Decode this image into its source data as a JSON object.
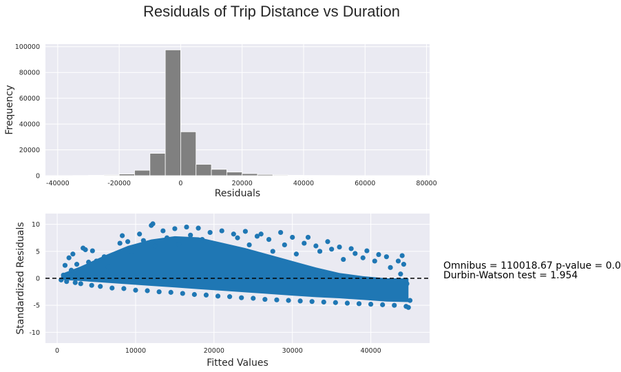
{
  "figure": {
    "title": "Residuals of Trip Distance vs Duration",
    "stats_line1": "Omnibus = 110018.67 p-value = 0.0",
    "stats_line2": "Durbin-Watson test = 1.954"
  },
  "chart_data": [
    {
      "type": "bar",
      "subtype": "histogram",
      "xlabel": "Residuals",
      "ylabel": "Frequency",
      "xlim": [
        -44000,
        81000
      ],
      "ylim": [
        0,
        102000
      ],
      "xticks": [
        -40000,
        -20000,
        0,
        20000,
        40000,
        60000,
        80000
      ],
      "xtick_labels": [
        "-40000",
        "-20000",
        "0",
        "20000",
        "40000",
        "60000",
        "80000"
      ],
      "yticks": [
        0,
        20000,
        40000,
        60000,
        80000,
        100000
      ],
      "ytick_labels": [
        "0",
        "20000",
        "40000",
        "60000",
        "80000",
        "100000"
      ],
      "grid": true,
      "bar_color": "#808080",
      "bins": [
        {
          "x0": -40000,
          "x1": -35000,
          "value": 50
        },
        {
          "x0": -35000,
          "x1": -30000,
          "value": 150
        },
        {
          "x0": -30000,
          "x1": -25000,
          "value": 300
        },
        {
          "x0": -25000,
          "x1": -20000,
          "value": 500
        },
        {
          "x0": -20000,
          "x1": -15000,
          "value": 1300
        },
        {
          "x0": -15000,
          "x1": -10000,
          "value": 4200
        },
        {
          "x0": -10000,
          "x1": -5000,
          "value": 17300
        },
        {
          "x0": -5000,
          "x1": 0,
          "value": 97500
        },
        {
          "x0": 0,
          "x1": 5000,
          "value": 34000
        },
        {
          "x0": 5000,
          "x1": 10000,
          "value": 8800
        },
        {
          "x0": 10000,
          "x1": 15000,
          "value": 4900
        },
        {
          "x0": 15000,
          "x1": 20000,
          "value": 2800
        },
        {
          "x0": 20000,
          "x1": 25000,
          "value": 1600
        },
        {
          "x0": 25000,
          "x1": 30000,
          "value": 900
        },
        {
          "x0": 30000,
          "x1": 35000,
          "value": 500
        },
        {
          "x0": 35000,
          "x1": 40000,
          "value": 300
        },
        {
          "x0": 40000,
          "x1": 45000,
          "value": 200
        },
        {
          "x0": 45000,
          "x1": 50000,
          "value": 150
        },
        {
          "x0": 50000,
          "x1": 55000,
          "value": 100
        },
        {
          "x0": 55000,
          "x1": 60000,
          "value": 60
        },
        {
          "x0": 60000,
          "x1": 65000,
          "value": 40
        },
        {
          "x0": 65000,
          "x1": 70000,
          "value": 30
        },
        {
          "x0": 70000,
          "x1": 75000,
          "value": 20
        }
      ]
    },
    {
      "type": "scatter",
      "xlabel": "Fitted Values",
      "ylabel": "Standardized Residuals",
      "xlim": [
        -1500,
        47500
      ],
      "ylim": [
        -12,
        12
      ],
      "xticks": [
        0,
        10000,
        20000,
        30000,
        40000
      ],
      "xtick_labels": [
        "0",
        "10000",
        "20000",
        "30000",
        "40000"
      ],
      "yticks": [
        -10,
        -5,
        0,
        5,
        10
      ],
      "ytick_labels": [
        "-10",
        "-5",
        "0",
        "5",
        "10"
      ],
      "grid": true,
      "point_color": "#1f77b4",
      "reference_line": {
        "y": 0,
        "style": "dashed",
        "color": "#000000"
      },
      "points": [
        [
          500,
          -0.3
        ],
        [
          800,
          0.6
        ],
        [
          1000,
          2.4
        ],
        [
          1200,
          -0.6
        ],
        [
          1500,
          3.8
        ],
        [
          1800,
          1.5
        ],
        [
          2000,
          4.5
        ],
        [
          2300,
          -0.8
        ],
        [
          2500,
          2.6
        ],
        [
          3000,
          -1.0
        ],
        [
          3300,
          5.6
        ],
        [
          3600,
          5.3
        ],
        [
          4000,
          3.0
        ],
        [
          4400,
          -1.3
        ],
        [
          4500,
          5.1
        ],
        [
          5000,
          3.2
        ],
        [
          5500,
          -1.5
        ],
        [
          6000,
          4.0
        ],
        [
          6500,
          2.1
        ],
        [
          7000,
          -1.8
        ],
        [
          7500,
          4.4
        ],
        [
          8000,
          6.5
        ],
        [
          8300,
          7.9
        ],
        [
          8500,
          -1.9
        ],
        [
          9000,
          6.8
        ],
        [
          9500,
          5.0
        ],
        [
          10000,
          -2.2
        ],
        [
          10500,
          8.2
        ],
        [
          11000,
          7.0
        ],
        [
          11500,
          -2.3
        ],
        [
          12000,
          9.8
        ],
        [
          12200,
          10.1
        ],
        [
          12500,
          6.0
        ],
        [
          13000,
          -2.5
        ],
        [
          13500,
          8.8
        ],
        [
          14000,
          7.5
        ],
        [
          14500,
          -2.6
        ],
        [
          15000,
          9.2
        ],
        [
          15500,
          6.3
        ],
        [
          16000,
          -2.8
        ],
        [
          16500,
          9.5
        ],
        [
          17000,
          8.0
        ],
        [
          17500,
          -3.0
        ],
        [
          18000,
          9.3
        ],
        [
          18500,
          7.2
        ],
        [
          19000,
          -3.1
        ],
        [
          19500,
          8.5
        ],
        [
          20000,
          6.4
        ],
        [
          20500,
          -3.3
        ],
        [
          21000,
          8.8
        ],
        [
          21500,
          5.8
        ],
        [
          22000,
          -3.4
        ],
        [
          22500,
          8.2
        ],
        [
          23000,
          7.5
        ],
        [
          23500,
          -3.6
        ],
        [
          24000,
          8.7
        ],
        [
          24500,
          6.2
        ],
        [
          25000,
          -3.7
        ],
        [
          25500,
          7.8
        ],
        [
          26000,
          8.2
        ],
        [
          26500,
          -3.9
        ],
        [
          27000,
          7.2
        ],
        [
          27500,
          5.0
        ],
        [
          28000,
          -4.0
        ],
        [
          28500,
          8.5
        ],
        [
          29000,
          6.2
        ],
        [
          29500,
          -4.1
        ],
        [
          30000,
          7.6
        ],
        [
          30500,
          4.5
        ],
        [
          31000,
          -4.2
        ],
        [
          31500,
          6.5
        ],
        [
          32000,
          7.6
        ],
        [
          32500,
          -4.3
        ],
        [
          33000,
          6.0
        ],
        [
          33500,
          5.0
        ],
        [
          34000,
          -4.4
        ],
        [
          34500,
          6.8
        ],
        [
          35000,
          5.4
        ],
        [
          35500,
          -4.5
        ],
        [
          36000,
          5.8
        ],
        [
          36500,
          3.5
        ],
        [
          37000,
          -4.6
        ],
        [
          37500,
          5.5
        ],
        [
          38000,
          4.6
        ],
        [
          38500,
          -4.7
        ],
        [
          39000,
          3.8
        ],
        [
          39500,
          5.1
        ],
        [
          40000,
          -4.8
        ],
        [
          40500,
          3.2
        ],
        [
          41000,
          4.4
        ],
        [
          41500,
          -4.9
        ],
        [
          42000,
          4.0
        ],
        [
          42500,
          2.0
        ],
        [
          43000,
          -5.0
        ],
        [
          43500,
          3.2
        ],
        [
          44000,
          4.2
        ],
        [
          44500,
          -5.2
        ],
        [
          44800,
          -5.4
        ],
        [
          45000,
          -4.1
        ],
        [
          44600,
          -1.0
        ],
        [
          44200,
          2.6
        ],
        [
          43800,
          0.8
        ]
      ]
    }
  ]
}
